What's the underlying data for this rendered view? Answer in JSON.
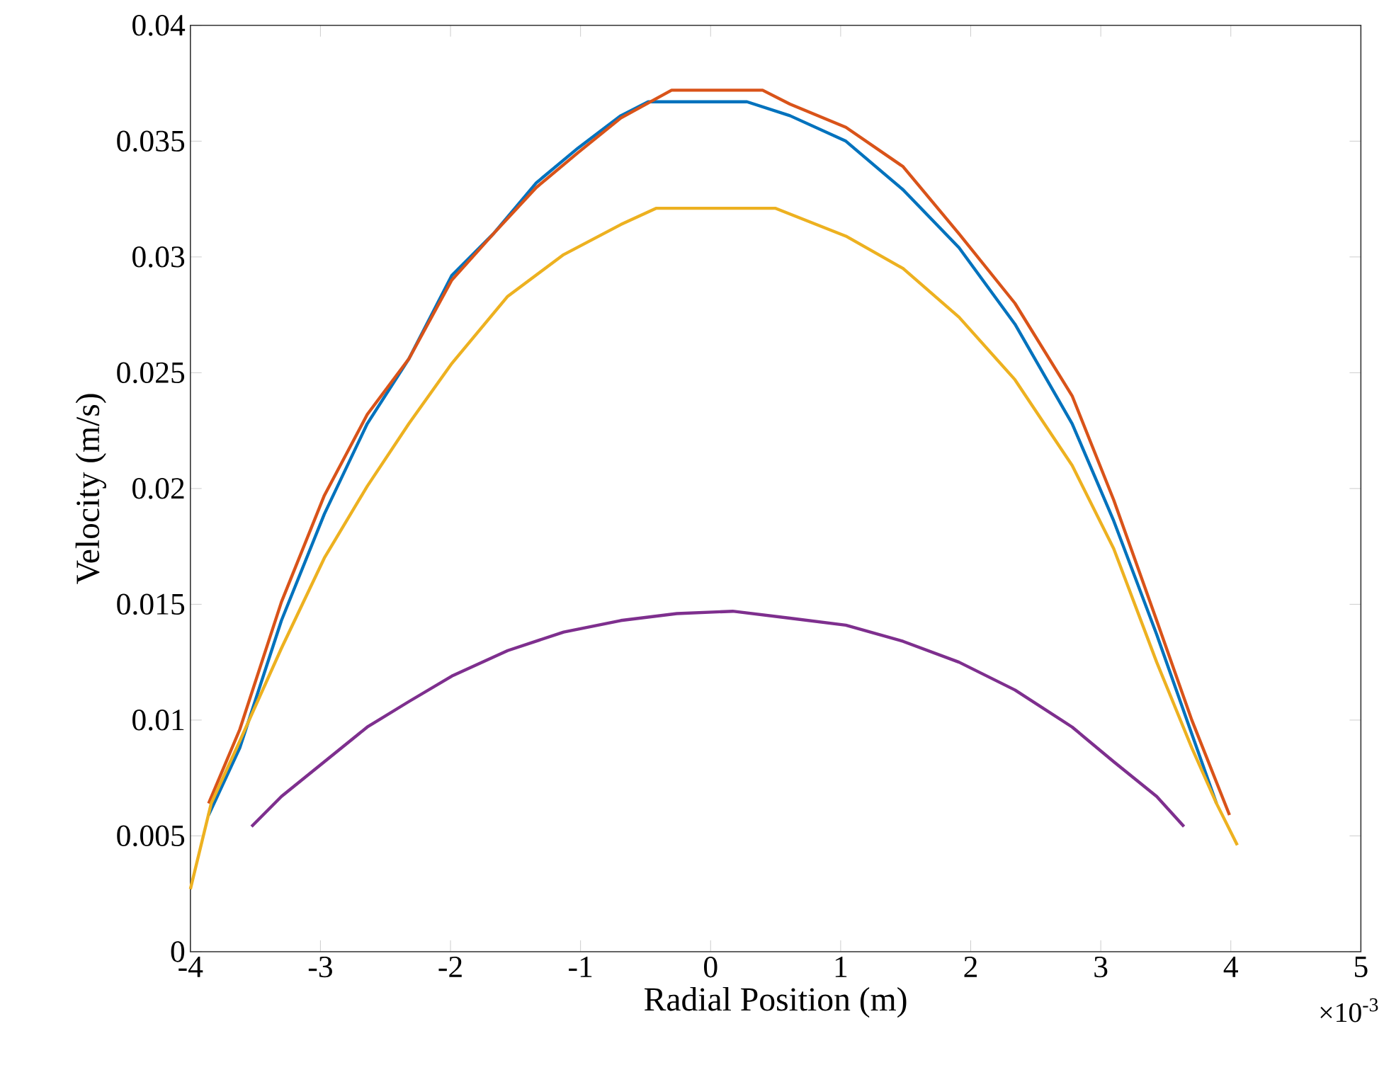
{
  "chart_data": {
    "type": "line",
    "xlabel": "Radial Position (m)",
    "ylabel": "Velocity (m/s)",
    "annotations": [
      "×10$^{-3}$"
    ],
    "xlim": [
      -4,
      5
    ],
    "xticks": [
      -4,
      -3,
      -2,
      -1,
      0,
      1,
      2,
      3,
      4,
      5
    ],
    "ylim": [
      0,
      0.04
    ],
    "yticks": [
      0,
      0.005,
      0.01,
      0.015,
      0.02,
      0.025,
      0.03,
      0.035,
      0.04
    ],
    "series": [
      {
        "color": "#0072bd",
        "x": [
          -3.86,
          -3.62,
          -3.3,
          -2.97,
          -2.64,
          -2.32,
          -1.99,
          -1.67,
          -1.34,
          -1.02,
          -0.69,
          -0.48,
          0,
          0.28,
          0.61,
          1.04,
          1.48,
          1.91,
          2.34,
          2.78,
          3.1,
          3.43,
          3.7,
          3.89
        ],
        "values": [
          0.0059,
          0.0088,
          0.0143,
          0.0189,
          0.0228,
          0.0256,
          0.0292,
          0.031,
          0.0332,
          0.0347,
          0.0361,
          0.0367,
          0.0367,
          0.0367,
          0.0361,
          0.035,
          0.0329,
          0.0304,
          0.0271,
          0.0228,
          0.0186,
          0.0137,
          0.0094,
          0.0064
        ]
      },
      {
        "color": "#d95319",
        "x": [
          -3.86,
          -3.62,
          -3.3,
          -2.97,
          -2.64,
          -2.32,
          -1.99,
          -1.67,
          -1.34,
          -1.02,
          -0.69,
          -0.3,
          0,
          0.4,
          0.61,
          1.04,
          1.48,
          1.91,
          2.34,
          2.78,
          3.1,
          3.43,
          3.7,
          3.99
        ],
        "values": [
          0.0064,
          0.0096,
          0.0151,
          0.0197,
          0.0232,
          0.0256,
          0.029,
          0.031,
          0.033,
          0.0345,
          0.036,
          0.0372,
          0.0372,
          0.0372,
          0.0366,
          0.0356,
          0.0339,
          0.031,
          0.028,
          0.024,
          0.0195,
          0.0143,
          0.01,
          0.0059
        ]
      },
      {
        "color": "#edb120",
        "x": [
          -4,
          -3.84,
          -3.62,
          -3.3,
          -2.97,
          -2.64,
          -2.32,
          -1.99,
          -1.56,
          -1.13,
          -0.69,
          -0.42,
          0,
          0.5,
          1.04,
          1.48,
          1.91,
          2.34,
          2.78,
          3.1,
          3.43,
          3.7,
          3.89,
          4.05
        ],
        "values": [
          0.0027,
          0.0064,
          0.0091,
          0.0131,
          0.017,
          0.0201,
          0.0228,
          0.0254,
          0.0283,
          0.0301,
          0.0314,
          0.0321,
          0.0321,
          0.0321,
          0.0309,
          0.0295,
          0.0274,
          0.0247,
          0.021,
          0.0174,
          0.0125,
          0.0088,
          0.0064,
          0.0046
        ]
      },
      {
        "color": "#7e2f8e",
        "x": [
          -3.53,
          -3.3,
          -2.97,
          -2.64,
          -2.32,
          -1.99,
          -1.56,
          -1.13,
          -0.69,
          -0.26,
          0.17,
          0.61,
          1.04,
          1.48,
          1.91,
          2.34,
          2.78,
          3.1,
          3.43,
          3.64
        ],
        "values": [
          0.0054,
          0.0067,
          0.0082,
          0.0097,
          0.0108,
          0.0119,
          0.013,
          0.0138,
          0.0143,
          0.0146,
          0.0147,
          0.0144,
          0.0141,
          0.0134,
          0.0125,
          0.0113,
          0.0097,
          0.0082,
          0.0067,
          0.0054
        ]
      }
    ]
  }
}
